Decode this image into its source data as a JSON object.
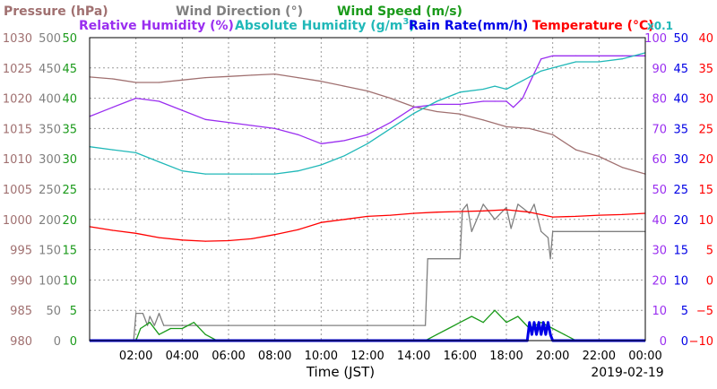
{
  "legend": {
    "pressure": "Pressure (hPa)",
    "wind_direction": "Wind Direction (°)",
    "wind_speed": "Wind Speed (m/s)",
    "relative_humidity": "Relative Humidity (%)",
    "absolute_humidity": "Absolute Humidity (g/m",
    "absolute_humidity_sup": "3",
    "absolute_humidity_close": ")",
    "rain_rate": "Rain Rate(mm/h)",
    "temperature": "Temperature (°C)",
    "scale_note": "x0.1"
  },
  "xlabel": "Time (JST)",
  "date": "2019-02-19",
  "colors": {
    "pressure": "#a07070",
    "wind_direction": "#808080",
    "wind_speed": "#1a9a1a",
    "relative_humidity": "#9a2ef0",
    "absolute_humidity": "#20b8b8",
    "rain_rate": "#0000e6",
    "temperature": "#ff0000",
    "plot_frame": "#000000"
  },
  "axes_labels": {
    "pressure": [
      "1030",
      "1025",
      "1020",
      "1015",
      "1010",
      "1005",
      "1000",
      "995",
      "990",
      "985",
      "980"
    ],
    "wind_direction": [
      "500",
      "450",
      "400",
      "350",
      "300",
      "250",
      "200",
      "150",
      "100",
      "50",
      "0"
    ],
    "wind_speed": [
      "50",
      "45",
      "40",
      "35",
      "30",
      "25",
      "20",
      "15",
      "10",
      "5",
      "0"
    ],
    "relative_humidity": [
      "100",
      "90",
      "80",
      "70",
      "60",
      "50",
      "40",
      "30",
      "20",
      "10",
      "0"
    ],
    "rain_rate": [
      "50",
      "45",
      "40",
      "35",
      "30",
      "25",
      "20",
      "15",
      "10",
      "5",
      "0"
    ],
    "temperature": [
      "40",
      "35",
      "30",
      "25",
      "20",
      "15",
      "10",
      "5",
      "0",
      "−5",
      "−10"
    ]
  },
  "chart_data": {
    "type": "line",
    "x_tick_labels": [
      "02:00",
      "04:00",
      "06:00",
      "08:00",
      "10:00",
      "12:00",
      "14:00",
      "16:00",
      "18:00",
      "20:00",
      "22:00",
      "00:00"
    ],
    "x_range_hours": [
      0,
      24
    ],
    "grid": true,
    "series": [
      {
        "name": "Pressure (hPa)",
        "axis_range": [
          980,
          1030
        ],
        "x": [
          0,
          1,
          2,
          3,
          4,
          5,
          6,
          7,
          8,
          9,
          10,
          11,
          12,
          13,
          14,
          15,
          16,
          17,
          18,
          19,
          20,
          21,
          22,
          23,
          24
        ],
        "values": [
          1023.5,
          1023.2,
          1022.6,
          1022.6,
          1023.0,
          1023.4,
          1023.6,
          1023.8,
          1024.0,
          1023.4,
          1022.8,
          1022.0,
          1021.2,
          1020.0,
          1018.6,
          1017.8,
          1017.4,
          1016.4,
          1015.3,
          1015.0,
          1014.0,
          1011.5,
          1010.4,
          1008.6,
          1007.5
        ]
      },
      {
        "name": "Wind Direction (°)",
        "axis_range": [
          0,
          500
        ],
        "x": [
          0,
          1.9,
          2.0,
          2.3,
          2.5,
          2.6,
          2.8,
          3.0,
          3.2,
          4.0,
          6.0,
          8.0,
          10.0,
          12.0,
          14.5,
          14.6,
          16.0,
          16.1,
          16.3,
          16.5,
          17.0,
          17.5,
          18.0,
          18.2,
          18.5,
          19.0,
          19.2,
          19.5,
          19.8,
          19.9,
          20.0,
          20.2,
          21.0,
          24.0
        ],
        "values": [
          0,
          0,
          45,
          45,
          25,
          40,
          25,
          45,
          25,
          25,
          25,
          25,
          25,
          25,
          25,
          135,
          135,
          215,
          225,
          180,
          225,
          200,
          220,
          185,
          225,
          210,
          225,
          180,
          170,
          135,
          180,
          180,
          180,
          180
        ]
      },
      {
        "name": "Wind Speed (m/s)",
        "axis_range": [
          0,
          50
        ],
        "x": [
          0,
          2.0,
          2.2,
          2.6,
          3.0,
          3.5,
          4.0,
          4.5,
          5.0,
          5.5,
          6.0,
          10.0,
          14.5,
          15.0,
          15.5,
          16.0,
          16.5,
          17.0,
          17.5,
          18.0,
          18.5,
          19.0,
          19.5,
          20.0,
          20.5,
          21.0,
          24.0
        ],
        "values": [
          0,
          0,
          2,
          3,
          1,
          2,
          2,
          3,
          1,
          0,
          0,
          0,
          0,
          1,
          2,
          3,
          4,
          3,
          5,
          3,
          4,
          2,
          3,
          2,
          1,
          0,
          0
        ]
      },
      {
        "name": "Relative Humidity (%)",
        "axis_range": [
          0,
          100
        ],
        "x": [
          0,
          1.0,
          2.0,
          3.0,
          4.0,
          5.0,
          6.0,
          7.0,
          8.0,
          9.0,
          10.0,
          11.0,
          12.0,
          13.0,
          14.0,
          15.0,
          16.0,
          17.0,
          17.5,
          18.0,
          18.3,
          18.7,
          19.0,
          19.5,
          20.0,
          21.0,
          22.0,
          23.0,
          24.0
        ],
        "values": [
          74,
          77,
          80,
          79,
          76,
          73,
          72,
          71,
          70,
          68,
          65,
          66,
          68,
          72,
          77,
          78,
          78,
          79,
          79,
          79,
          77,
          80,
          85,
          93,
          94,
          94,
          94,
          94,
          94
        ]
      },
      {
        "name": "Absolute Humidity (g/m3) x0.1",
        "axis_range": [
          0,
          100
        ],
        "x": [
          0,
          1.0,
          2.0,
          3.0,
          4.0,
          5.0,
          6.0,
          7.0,
          8.0,
          9.0,
          10.0,
          11.0,
          12.0,
          13.0,
          14.0,
          15.0,
          16.0,
          17.0,
          17.5,
          18.0,
          18.5,
          19.0,
          19.5,
          20.0,
          21.0,
          22.0,
          23.0,
          24.0
        ],
        "values": [
          64,
          63,
          62,
          59,
          56,
          55,
          55,
          55,
          55,
          56,
          58,
          61,
          65,
          70,
          75,
          79,
          82,
          83,
          84,
          83,
          85,
          87,
          89,
          90,
          92,
          92,
          93,
          95
        ]
      },
      {
        "name": "Rain Rate(mm/h)",
        "axis_range": [
          0,
          50
        ],
        "x": [
          0,
          18.9,
          19.0,
          19.1,
          19.2,
          19.3,
          19.4,
          19.5,
          19.6,
          19.7,
          19.8,
          19.9,
          20.0,
          24.0
        ],
        "values": [
          0,
          0,
          3,
          1,
          3,
          1,
          3,
          1,
          3,
          1,
          3,
          1,
          0,
          0
        ]
      },
      {
        "name": "Temperature (°C)",
        "axis_range": [
          -10,
          40
        ],
        "x": [
          0,
          1.0,
          2.0,
          3.0,
          4.0,
          5.0,
          6.0,
          7.0,
          8.0,
          9.0,
          10.0,
          11.0,
          12.0,
          13.0,
          14.0,
          15.0,
          16.0,
          17.0,
          18.0,
          19.0,
          20.0,
          21.0,
          22.0,
          23.0,
          24.0
        ],
        "values": [
          8.8,
          8.2,
          7.7,
          7.0,
          6.6,
          6.4,
          6.5,
          6.8,
          7.5,
          8.3,
          9.5,
          10.0,
          10.5,
          10.7,
          11.0,
          11.2,
          11.3,
          11.4,
          11.6,
          11.2,
          10.4,
          10.5,
          10.7,
          10.8,
          11.0
        ]
      }
    ]
  }
}
